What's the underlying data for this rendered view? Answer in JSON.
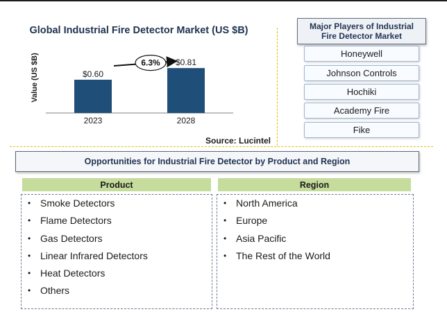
{
  "chart_data": {
    "type": "bar",
    "title": "Global Industrial Fire Detector Market (US $B)",
    "ylabel": "Value (US $B)",
    "xlabel": "",
    "categories": [
      "2023",
      "2028"
    ],
    "values": [
      0.6,
      0.81
    ],
    "value_labels": [
      "$0.60",
      "$0.81"
    ],
    "ylim": [
      0,
      1.1
    ],
    "bar_color": "#1f4e79",
    "cagr_label": "6.3%",
    "grid": false,
    "source": "Source: Lucintel"
  },
  "players": {
    "title_line1": "Major Players of Industrial",
    "title_line2": "Fire Detector Market",
    "items": [
      "Honeywell",
      "Johnson Controls",
      "Hochiki",
      "Academy Fire",
      "Fike"
    ]
  },
  "opportunities": {
    "title": "Opportunities for Industrial Fire Detector by Product and Region",
    "product": {
      "header": "Product",
      "items": [
        "Smoke Detectors",
        "Flame Detectors",
        "Gas Detectors",
        "Linear Infrared Detectors",
        "Heat Detectors",
        "Others"
      ]
    },
    "region": {
      "header": "Region",
      "items": [
        "North America",
        "Europe",
        "Asia Pacific",
        "The Rest of the World"
      ]
    }
  },
  "colors": {
    "header_green": "#c5dc9c",
    "title_navy": "#1f3350",
    "divider_yellow": "#e0c000"
  }
}
